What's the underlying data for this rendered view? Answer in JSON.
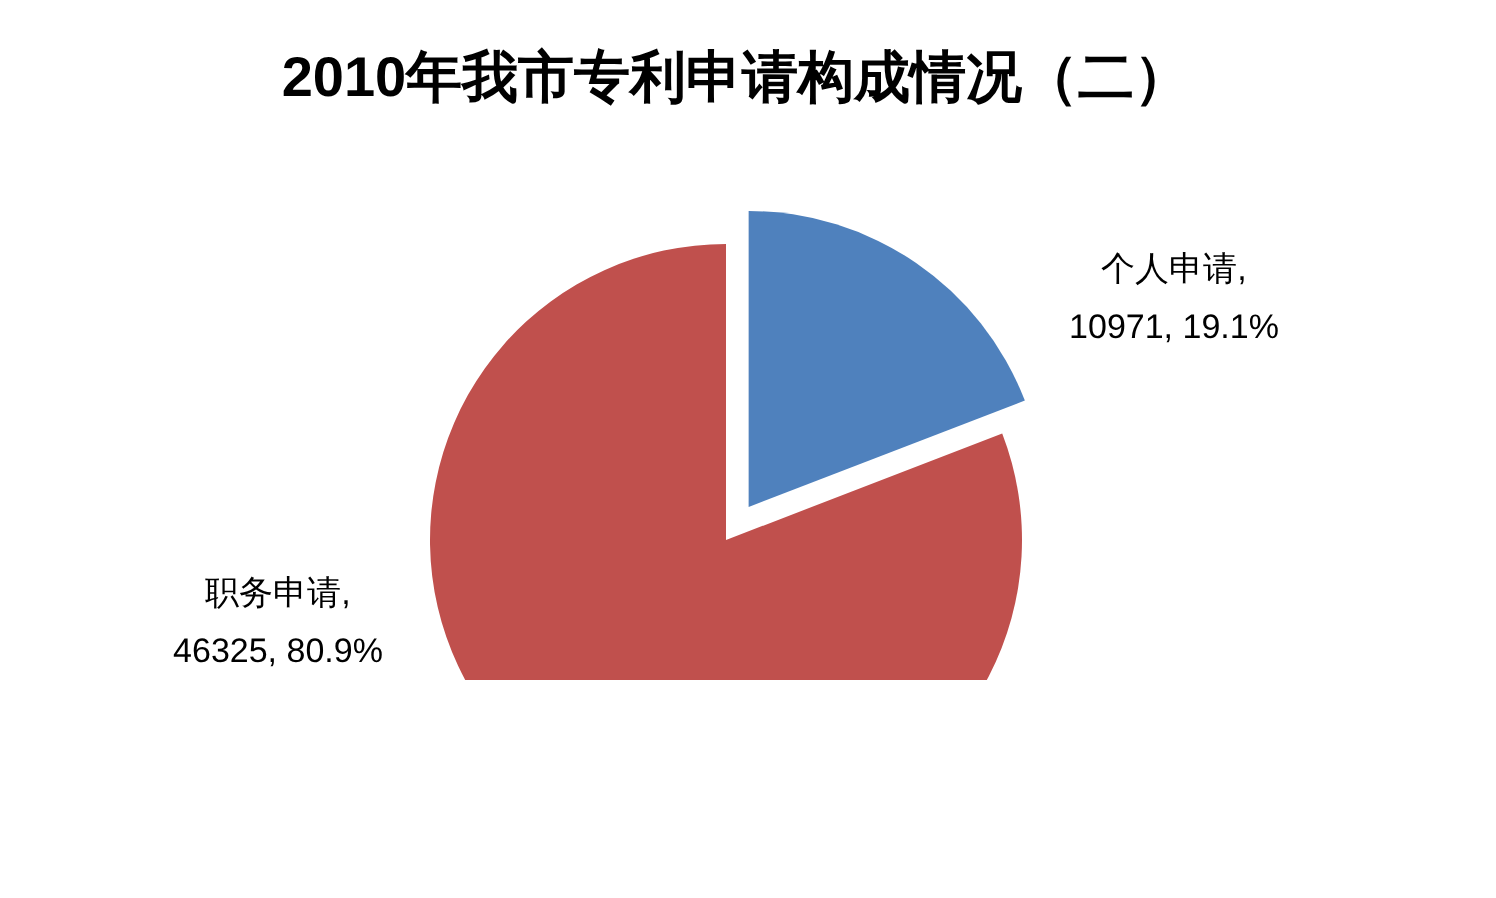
{
  "chart_data": {
    "type": "pie",
    "title": "2010年我市专利申请构成情况（二）",
    "categories": [
      "个人申请",
      "职务申请"
    ],
    "values": [
      10971,
      46325
    ],
    "colors": [
      "#4f81bd",
      "#c0504d"
    ],
    "value_labels": [
      ", 10971, 19.1%",
      ", 46325, 80.9%"
    ]
  }
}
